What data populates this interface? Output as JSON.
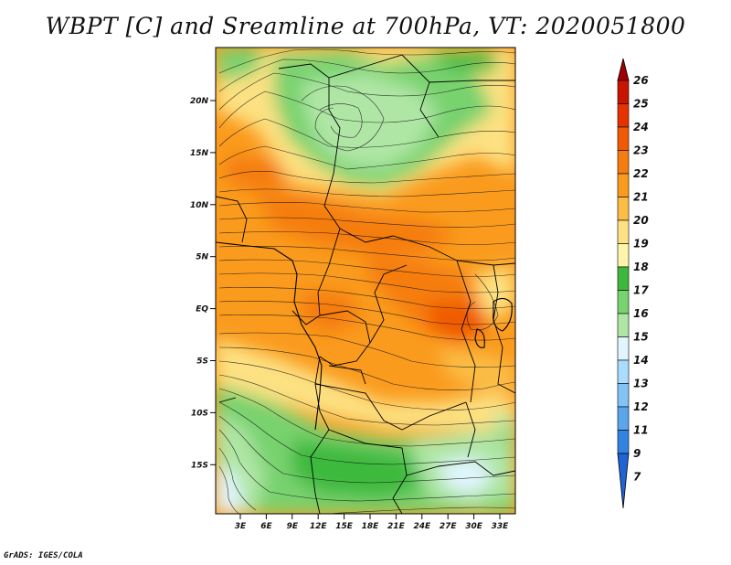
{
  "title": "WBPT [C] and Sreamline at 700hPa, VT: 2020051800",
  "credit": "GrADS: IGES/COLA",
  "map": {
    "variable": "WBPT [C]",
    "overlay": "Streamline",
    "level": "700hPa",
    "valid_time": "2020051800",
    "lat_labels": [
      "20N",
      "15N",
      "10N",
      "5N",
      "EQ",
      "5S",
      "10S",
      "15S"
    ],
    "lon_labels": [
      "3E",
      "6E",
      "9E",
      "12E",
      "15E",
      "18E",
      "21E",
      "24E",
      "27E",
      "30E",
      "33E"
    ]
  },
  "colorbar": {
    "labels": [
      "26",
      "25",
      "24",
      "23",
      "22",
      "21",
      "20",
      "19",
      "18",
      "17",
      "16",
      "15",
      "14",
      "13",
      "12",
      "11",
      "9",
      "7"
    ],
    "colors": [
      "#a00000",
      "#c81400",
      "#e63200",
      "#f05a05",
      "#f57d0f",
      "#fa9b1e",
      "#fbbd46",
      "#fde182",
      "#fff5aa",
      "#3cb93c",
      "#78d26e",
      "#afe6a5",
      "#e1f5ff",
      "#aadcff",
      "#82c3f5",
      "#5aa5eb",
      "#3282e1",
      "#1e64d2"
    ]
  }
}
